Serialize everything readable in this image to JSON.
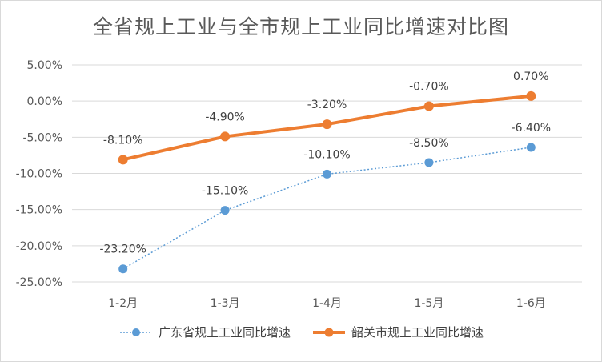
{
  "chart_data": {
    "type": "line",
    "title": "全省规上工业与全市规上工业同比增速对比图",
    "xlabel": "",
    "ylabel": "",
    "categories": [
      "1-2月",
      "1-3月",
      "1-4月",
      "1-5月",
      "1-6月"
    ],
    "y_ticks": [
      "5.00%",
      "0.00%",
      "-5.00%",
      "-10.00%",
      "-15.00%",
      "-20.00%",
      "-25.00%"
    ],
    "ylim": [
      -25,
      5
    ],
    "grid": true,
    "legend_position": "bottom",
    "series": [
      {
        "name": "广东省规上工业同比增速",
        "values": [
          -23.2,
          -15.1,
          -10.1,
          -8.5,
          -6.4
        ],
        "labels": [
          "-23.20%",
          "-15.10%",
          "-10.10%",
          "-8.50%",
          "-6.40%"
        ],
        "color": "#5b9bd5",
        "line_style": "dotted"
      },
      {
        "name": "韶关市规上工业同比增速",
        "values": [
          -8.1,
          -4.9,
          -3.2,
          -0.7,
          0.7
        ],
        "labels": [
          "-8.10%",
          "-4.90%",
          "-3.20%",
          "-0.70%",
          "0.70%"
        ],
        "color": "#ed7d31",
        "line_style": "solid"
      }
    ]
  }
}
